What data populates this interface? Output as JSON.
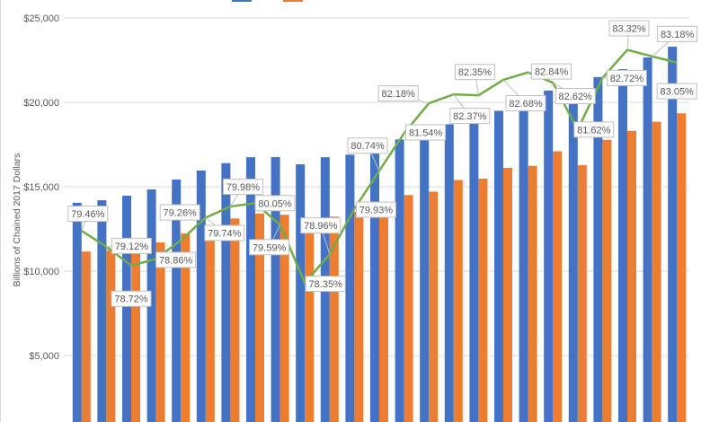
{
  "chart_data": {
    "type": "bar",
    "title": "",
    "xlabel": "",
    "ylabel": "Billions of Chained 2017 Dollars",
    "ylim": [
      0,
      25000
    ],
    "y2lim": [
      75,
      84
    ],
    "yticks": [
      "$5,000",
      "$10,000",
      "$15,000",
      "$20,000",
      "$25,000"
    ],
    "ytick_values": [
      5000,
      10000,
      15000,
      20000,
      25000
    ],
    "grid": true,
    "legend": "top",
    "series": [
      {
        "type": "bar",
        "color": "#4472C4",
        "values": [
          14050,
          14200,
          14470,
          14840,
          15430,
          15960,
          16400,
          16750,
          16760,
          16330,
          16750,
          16900,
          17100,
          17800,
          17900,
          18700,
          18800,
          19500,
          19600,
          20700,
          19950,
          21500,
          21970,
          22660,
          23300
        ]
      },
      {
        "type": "bar",
        "color": "#ED7D31",
        "values": [
          11160,
          11240,
          11390,
          11700,
          12230,
          12730,
          13120,
          13410,
          13340,
          12790,
          13230,
          13510,
          13810,
          14510,
          14710,
          15400,
          15480,
          16120,
          16240,
          17100,
          16280,
          17780,
          18310,
          18850,
          19350
        ]
      },
      {
        "type": "line",
        "axis": "secondary",
        "color": "#70AD47",
        "values": [
          79.46,
          79.12,
          78.72,
          78.86,
          79.26,
          79.74,
          79.98,
          80.05,
          79.59,
          78.35,
          78.96,
          79.93,
          80.74,
          81.54,
          82.18,
          82.37,
          82.35,
          82.68,
          82.84,
          82.62,
          81.62,
          82.72,
          83.32,
          83.18,
          83.05
        ],
        "labels": [
          "79.46%",
          "79.12%",
          "78.72%",
          "78.86%",
          "79.26%",
          "79.74%",
          "79.98%",
          "80.05%",
          "79.59%",
          "78.35%",
          "78.96%",
          "79.93%",
          "80.74%",
          "81.54%",
          "82.18%",
          "82.37%",
          "82.35%",
          "82.68%",
          "82.84%",
          "82.62%",
          "81.62%",
          "82.72%",
          "83.32%",
          "83.18%",
          "83.05%"
        ]
      }
    ]
  }
}
